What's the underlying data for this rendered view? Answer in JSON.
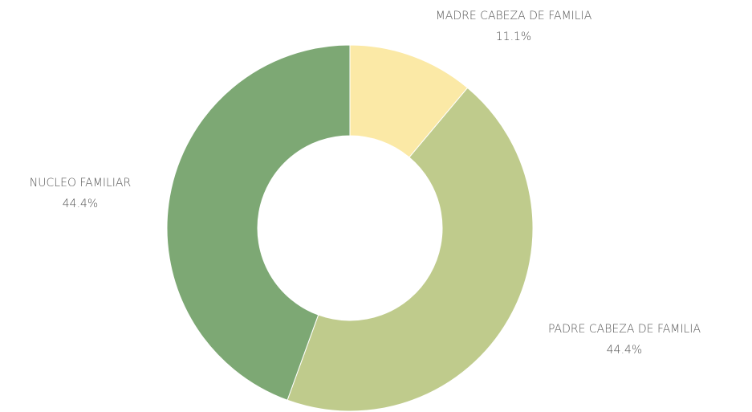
{
  "chart_data": {
    "type": "donut",
    "categories": [
      "MADRE CABEZA DE FAMILIA",
      "PADRE CABEZA DE FAMILIA",
      "NUCLEO FAMILIAR"
    ],
    "values": [
      11.1,
      44.4,
      44.4
    ],
    "value_labels": [
      "11.1%",
      "44.4%",
      "44.4%"
    ],
    "colors": [
      "#fbe9a6",
      "#bfcb8c",
      "#7da874"
    ]
  }
}
